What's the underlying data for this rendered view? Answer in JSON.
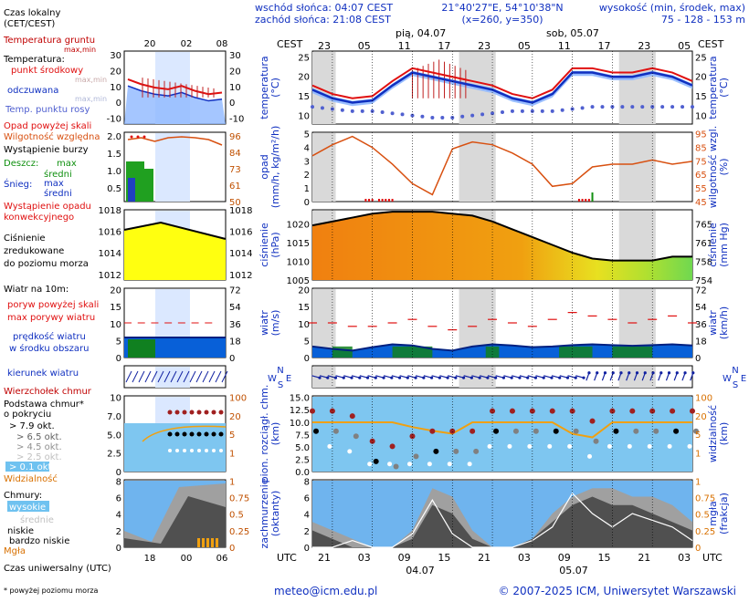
{
  "header": {
    "sunrise": "wschód słońca: 04:07 CEST",
    "sunset": "zachód słońca: 21:08 CEST",
    "coords": "21°40'27\"E, 54°10'38\"N",
    "grid": "(x=260, y=350)",
    "height_label": "wysokość (min, środek, max)",
    "height_values": "75 - 128 - 153 m",
    "cest_left": "CEST",
    "cest_right": "CEST",
    "day1": "pią, 04.07",
    "day2": "sob, 05.07"
  },
  "footer": {
    "email": "meteo@icm.edu.pl",
    "copyright": "© 2007-2025 ICM, Uniwersytet Warszawski",
    "utc_left": "UTC",
    "utc_right": "UTC",
    "date1": "04.07",
    "date2": "05.07",
    "footnote": "* powyżej poziomu morza"
  },
  "legend": {
    "time_title": "Czas lokalny",
    "time_sub": "(CET/CEST)",
    "utc_title": "Czas uniwersalny (UTC)",
    "local_ticks": [
      "20",
      "02",
      "08"
    ],
    "utc_ticks": [
      "18",
      "00",
      "06"
    ],
    "temp": {
      "ground": "Temperatura gruntu",
      "ground_sub": "max,min",
      "temp": "Temperatura:",
      "mid": "punkt środkowy",
      "maxmin": "max,min",
      "felt": "odczuwana",
      "felt_sub": "max,min",
      "dew": "Temp. punktu rosy",
      "ticks": [
        "30",
        "20",
        "10",
        "0",
        "-10"
      ]
    },
    "precip": {
      "above": "Opad powyżej skali",
      "humidity": "Wilgotność względna",
      "storm": "Wystąpienie burzy",
      "rain": "Deszcz:",
      "rain_max": "max",
      "rain_mean": "średni",
      "snow": "Śnieg:",
      "snow_max": "max",
      "snow_mean": "średni",
      "occur": "Wystąpienie opadu",
      "convective": "konwekcyjnego",
      "ticks_l": [
        "2.0",
        "1.5",
        "1.0",
        "0.5"
      ],
      "ticks_r": [
        "96",
        "84",
        "73",
        "61",
        "50"
      ]
    },
    "pressure": {
      "l1": "Ciśnienie",
      "l2": "zredukowane",
      "l3": "do poziomu morza",
      "ticks": [
        "1018",
        "1016",
        "1014",
        "1012"
      ]
    },
    "wind": {
      "title": "Wiatr na 10m:",
      "gust_above": "poryw powyżej skali",
      "gust": "max porywy wiatru",
      "speed": "prędkość wiatru",
      "speed_sub": "w środku obszaru",
      "ticks_l": [
        "20",
        "15",
        "10",
        "5",
        "0"
      ],
      "ticks_r": [
        "72",
        "54",
        "36",
        "18",
        "0"
      ]
    },
    "dir": {
      "label": "kierunek wiatru"
    },
    "base": {
      "cb": "Wierzchołek chmur",
      "b1": "Podstawa chmur*",
      "b2": "o pokryciu",
      "o79": "> 7.9 okt.",
      "o65": "> 6.5 okt.",
      "o45": "> 4.5 okt.",
      "o25": "> 2.5 okt.",
      "o01": "> 0.1 okt.",
      "vis": "Widzialność",
      "ticks_l": [
        "10",
        "7.0",
        "5.0",
        "2.5",
        "0"
      ],
      "ticks_r": [
        "100",
        "20",
        "5",
        "1"
      ]
    },
    "clouds": {
      "title": "Chmury:",
      "high": "wysokie",
      "mid": "średnie",
      "low": "niskie",
      "vlow": "bardzo niskie",
      "fog": "Mgła",
      "ticks_l": [
        "8",
        "6",
        "4",
        "2",
        "0"
      ],
      "ticks_r": [
        "1",
        "0.75",
        "0.5",
        "0.25",
        "0"
      ]
    }
  },
  "main": {
    "local_hours": [
      "23",
      "05",
      "11",
      "17",
      "23",
      "05",
      "11",
      "17",
      "23",
      "05"
    ],
    "utc_hours": [
      "21",
      "03",
      "09",
      "15",
      "21",
      "03",
      "09",
      "15",
      "21",
      "03"
    ],
    "temp": {
      "label_l": "temperatura",
      "unit_l": "(°C)",
      "label_r": "temperatura",
      "unit_r": "(°C)",
      "ticks": [
        "25",
        "20",
        "15",
        "10"
      ]
    },
    "precip": {
      "label_l": "opad",
      "unit_l": "(mm/h, kg/m²/h)",
      "label_r": "wilgotność wzgl.",
      "unit_r": "(%)",
      "ticks_l": [
        "5",
        "4",
        "3",
        "2",
        "1",
        "0"
      ],
      "ticks_r": [
        "95",
        "85",
        "75",
        "65",
        "55",
        "45"
      ]
    },
    "pressure": {
      "label_l": "ciśnienie",
      "unit_l": "(hPa)",
      "label_r": "ciśnienie",
      "unit_r": "(mm Hg)",
      "ticks_l": [
        "1020",
        "1015",
        "1010",
        "1005"
      ],
      "ticks_r": [
        "765",
        "761",
        "758",
        "754"
      ]
    },
    "wind": {
      "label_l": "wiatr",
      "unit_l": "(m/s)",
      "label_r": "wiatr",
      "unit_r": "(km/h)",
      "ticks_l": [
        "20",
        "15",
        "10",
        "5",
        "0"
      ],
      "ticks_r": [
        "72",
        "54",
        "36",
        "18",
        "0"
      ]
    },
    "dir": {
      "n": "N",
      "s": "S",
      "w": "W",
      "e": "E"
    },
    "base": {
      "label_l": "pion. rozciągł. chm.",
      "unit_l": "(km)",
      "label_r": "widzialność",
      "unit_r": "(km)",
      "ticks_l": [
        "15.0",
        "12.5",
        "10.0",
        "7.5",
        "5.0",
        "2.5",
        "0.0"
      ],
      "ticks_r": [
        "100",
        "20",
        "5",
        "1"
      ]
    },
    "clouds": {
      "label_l": "zachmurzenie",
      "unit_l": "(oktanty)",
      "label_r": "mgła",
      "unit_r": "(frakcja)",
      "ticks_l": [
        "8",
        "6",
        "4",
        "2",
        "0"
      ],
      "ticks_r": [
        "1",
        "0.75",
        "0.5",
        "0.25",
        "0"
      ]
    }
  },
  "colors": {
    "panel_bg": "#ffffff",
    "night": "#d9d9d9",
    "red": "#e01010",
    "blue": "#1030c0",
    "orange": "#d85010",
    "green": "#109010"
  },
  "chart_data": {
    "type": "line",
    "title": "Meteogram 21°40'27\"E, 54°10'38\"N",
    "x_hours_utc": [
      21,
      24,
      27,
      30,
      33,
      36,
      39,
      42,
      45,
      48,
      51,
      54,
      57,
      60,
      63,
      66,
      69,
      72,
      75,
      78
    ],
    "series": [
      {
        "name": "temperatura (°C)",
        "values": [
          17,
          15,
          14,
          14.5,
          18,
          21,
          20,
          19,
          18,
          17,
          15,
          14,
          16,
          21,
          21,
          20,
          20,
          21,
          20,
          18
        ]
      },
      {
        "name": "temp. punktu rosy (°C)",
        "values": [
          12,
          11.5,
          11,
          11,
          10.5,
          10,
          9.5,
          9.5,
          10,
          10.5,
          11,
          11,
          11,
          11.5,
          12,
          12,
          12,
          12,
          12,
          12
        ]
      },
      {
        "name": "wilgotność wzgl. (%)",
        "values": [
          78,
          86,
          92,
          84,
          72,
          58,
          50,
          83,
          88,
          86,
          80,
          72,
          56,
          58,
          70,
          72,
          72,
          75,
          72,
          74
        ]
      },
      {
        "name": "ciśnienie (hPa)",
        "values": [
          1019,
          1020,
          1021,
          1022,
          1022.5,
          1022.5,
          1022.5,
          1022,
          1021.5,
          1020,
          1018,
          1016,
          1014,
          1012,
          1010.5,
          1010,
          1010,
          1010,
          1011,
          1011
        ]
      },
      {
        "name": "prędkość wiatru (m/s)",
        "values": [
          3.2,
          2.5,
          2,
          3,
          3.8,
          3.5,
          2.5,
          2,
          3.2,
          3.8,
          3.5,
          3,
          3.2,
          3.6,
          3.8,
          3.6,
          3.4,
          3.6,
          3.8,
          3.5
        ]
      },
      {
        "name": "max porywy wiatru (m/s)",
        "values": [
          10,
          10,
          9,
          9,
          10,
          11,
          9,
          8,
          9,
          11,
          10,
          9,
          11,
          13,
          12,
          11,
          10,
          11,
          12,
          10
        ]
      },
      {
        "name": "widzialność (km)",
        "values": [
          20,
          20,
          20,
          20,
          20,
          15,
          12,
          10,
          20,
          20,
          20,
          20,
          20,
          10,
          8,
          20,
          20,
          20,
          20,
          20
        ]
      }
    ],
    "precip_total_mm": 0.2,
    "xlabel": "UTC",
    "ylim_temp": [
      8,
      25
    ]
  }
}
